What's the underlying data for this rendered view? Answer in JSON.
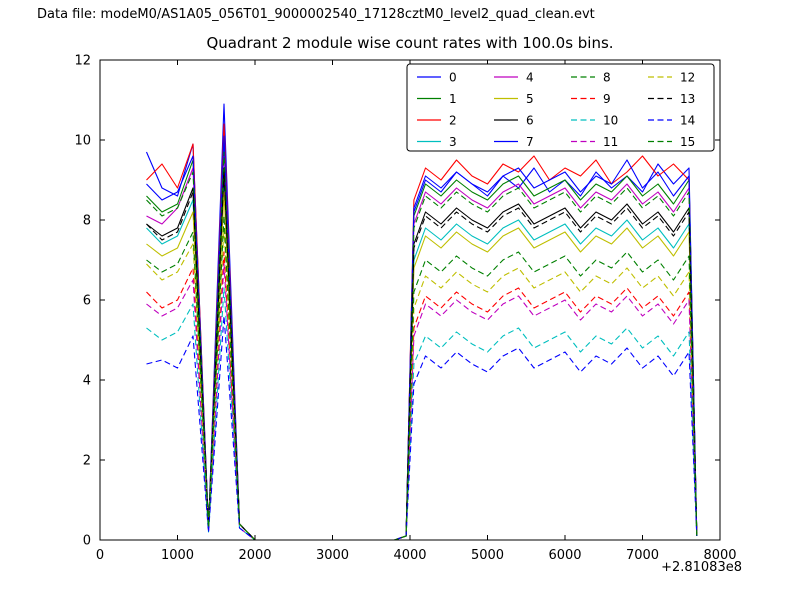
{
  "header": {
    "data_file_label": "Data file: modeM0/AS1A05_056T01_9000002540_17128cztM0_level2_quad_clean.evt"
  },
  "chart_data": {
    "type": "line",
    "title": "Quadrant 2 module wise count rates with 100.0s bins.",
    "xlabel": "",
    "ylabel": "",
    "x_offset_label": "+2.81083e8",
    "xlim": [
      0,
      8000
    ],
    "ylim": [
      0,
      12
    ],
    "xticks": [
      0,
      1000,
      2000,
      3000,
      4000,
      5000,
      6000,
      7000,
      8000
    ],
    "yticks": [
      0,
      2,
      4,
      6,
      8,
      10,
      12
    ],
    "grid": false,
    "legend": {
      "position": "upper center-right",
      "columns": 4,
      "rows": 4
    },
    "x": [
      600,
      800,
      1000,
      1200,
      1400,
      1600,
      1800,
      2000,
      2200,
      2400,
      2600,
      2800,
      3000,
      3200,
      3400,
      3600,
      3800,
      3950,
      4050,
      4200,
      4400,
      4600,
      4800,
      5000,
      5200,
      5400,
      5600,
      5800,
      6000,
      6200,
      6400,
      6600,
      6800,
      7000,
      7200,
      7400,
      7600,
      7700
    ],
    "series": [
      {
        "name": "0",
        "color": "#0000ff",
        "style": "solid",
        "values": [
          9.7,
          8.8,
          8.6,
          9.9,
          0.3,
          10.9,
          0.4,
          0,
          0,
          0,
          0,
          0,
          0,
          0,
          0,
          0,
          0,
          0.1,
          8.2,
          9.0,
          8.7,
          9.2,
          8.9,
          8.6,
          9.1,
          8.8,
          9.3,
          8.7,
          9.0,
          8.6,
          9.2,
          8.8,
          9.1,
          8.7,
          9.4,
          8.9,
          9.3,
          0.1
        ]
      },
      {
        "name": "1",
        "color": "#008000",
        "style": "solid",
        "values": [
          8.6,
          8.2,
          8.4,
          9.5,
          0.3,
          9.9,
          0.4,
          0,
          0,
          0,
          0,
          0,
          0,
          0,
          0,
          0,
          0,
          0.1,
          8.1,
          8.9,
          8.6,
          9.0,
          8.7,
          8.5,
          8.9,
          9.1,
          8.6,
          8.8,
          9.0,
          8.5,
          8.9,
          8.7,
          9.1,
          8.6,
          8.9,
          8.4,
          9.0,
          0.1
        ]
      },
      {
        "name": "2",
        "color": "#ff0000",
        "style": "solid",
        "values": [
          9.0,
          9.4,
          8.8,
          9.9,
          0.3,
          10.4,
          0.4,
          0,
          0,
          0,
          0,
          0,
          0,
          0,
          0,
          0,
          0,
          0.1,
          8.5,
          9.3,
          9.0,
          9.5,
          9.1,
          8.9,
          9.4,
          9.2,
          9.6,
          9.0,
          9.3,
          9.1,
          9.5,
          8.9,
          9.2,
          9.6,
          9.1,
          9.4,
          9.0,
          0.1
        ]
      },
      {
        "name": "3",
        "color": "#00bfbf",
        "style": "solid",
        "values": [
          7.8,
          7.4,
          7.6,
          8.5,
          0.3,
          8.9,
          0.4,
          0,
          0,
          0,
          0,
          0,
          0,
          0,
          0,
          0,
          0,
          0.1,
          7.0,
          7.8,
          7.5,
          7.9,
          7.6,
          7.4,
          7.8,
          8.0,
          7.5,
          7.7,
          7.9,
          7.4,
          7.8,
          7.6,
          8.0,
          7.5,
          7.8,
          7.3,
          7.9,
          0.1
        ]
      },
      {
        "name": "4",
        "color": "#bf00bf",
        "style": "solid",
        "values": [
          8.1,
          7.9,
          8.3,
          9.3,
          0.3,
          9.8,
          0.4,
          0,
          0,
          0,
          0,
          0,
          0,
          0,
          0,
          0,
          0,
          0.1,
          7.9,
          8.7,
          8.4,
          8.8,
          8.5,
          8.3,
          8.7,
          8.9,
          8.4,
          8.6,
          8.8,
          8.3,
          8.7,
          8.5,
          8.9,
          8.4,
          8.7,
          8.2,
          8.8,
          0.1
        ]
      },
      {
        "name": "5",
        "color": "#bfbf00",
        "style": "solid",
        "values": [
          7.4,
          7.1,
          7.3,
          8.2,
          0.3,
          8.7,
          0.4,
          0,
          0,
          0,
          0,
          0,
          0,
          0,
          0,
          0,
          0,
          0.1,
          6.8,
          7.6,
          7.3,
          7.7,
          7.4,
          7.2,
          7.6,
          7.8,
          7.3,
          7.5,
          7.7,
          7.2,
          7.6,
          7.4,
          7.8,
          7.3,
          7.6,
          7.1,
          7.7,
          0.1
        ]
      },
      {
        "name": "6",
        "color": "#000000",
        "style": "solid",
        "values": [
          7.9,
          7.6,
          7.8,
          8.8,
          0.3,
          9.3,
          0.4,
          0,
          0,
          0,
          0,
          0,
          0,
          0,
          0,
          0,
          0,
          0.1,
          7.4,
          8.2,
          7.9,
          8.3,
          8.0,
          7.8,
          8.2,
          8.4,
          7.9,
          8.1,
          8.3,
          7.8,
          8.2,
          8.0,
          8.4,
          7.9,
          8.2,
          7.7,
          8.3,
          0.1
        ]
      },
      {
        "name": "7",
        "color": "#0000ff",
        "style": "solid",
        "values": [
          8.9,
          8.5,
          8.7,
          9.6,
          0.3,
          10.1,
          0.4,
          0,
          0,
          0,
          0,
          0,
          0,
          0,
          0,
          0,
          0,
          0.1,
          8.3,
          9.1,
          8.8,
          9.2,
          8.9,
          8.7,
          9.1,
          9.3,
          8.8,
          9.0,
          9.2,
          8.7,
          9.1,
          8.9,
          9.5,
          8.8,
          9.2,
          8.6,
          9.1,
          0.1
        ]
      },
      {
        "name": "8",
        "color": "#008000",
        "style": "dashed",
        "values": [
          8.5,
          8.1,
          8.3,
          9.2,
          0.3,
          9.7,
          0.4,
          0,
          0,
          0,
          0,
          0,
          0,
          0,
          0,
          0,
          0,
          0.1,
          7.8,
          8.6,
          8.3,
          8.7,
          8.4,
          8.2,
          8.6,
          8.8,
          8.3,
          8.5,
          8.7,
          8.2,
          8.6,
          8.4,
          8.8,
          8.3,
          8.6,
          8.1,
          8.7,
          0.1
        ]
      },
      {
        "name": "9",
        "color": "#ff0000",
        "style": "dashed",
        "values": [
          6.2,
          5.8,
          6.0,
          6.8,
          0.3,
          7.2,
          0.4,
          0,
          0,
          0,
          0,
          0,
          0,
          0,
          0,
          0,
          0,
          0.1,
          5.3,
          6.1,
          5.8,
          6.2,
          5.9,
          5.7,
          6.1,
          6.3,
          5.8,
          6.0,
          6.2,
          5.7,
          6.1,
          5.9,
          6.3,
          5.8,
          6.1,
          5.6,
          6.2,
          0.1
        ]
      },
      {
        "name": "10",
        "color": "#00bfbf",
        "style": "dashed",
        "values": [
          5.3,
          5.0,
          5.2,
          5.9,
          0.2,
          6.3,
          0.3,
          0,
          0,
          0,
          0,
          0,
          0,
          0,
          0,
          0,
          0,
          0.1,
          4.4,
          5.1,
          4.8,
          5.2,
          4.9,
          4.7,
          5.1,
          5.3,
          4.8,
          5.0,
          5.2,
          4.7,
          5.1,
          4.9,
          5.3,
          4.8,
          5.1,
          4.6,
          5.2,
          0.1
        ]
      },
      {
        "name": "11",
        "color": "#bf00bf",
        "style": "dashed",
        "values": [
          5.9,
          5.6,
          5.8,
          6.5,
          0.2,
          6.9,
          0.3,
          0,
          0,
          0,
          0,
          0,
          0,
          0,
          0,
          0,
          0,
          0.1,
          5.1,
          5.9,
          5.6,
          6.0,
          5.7,
          5.5,
          5.9,
          6.1,
          5.6,
          5.8,
          6.0,
          5.5,
          5.9,
          5.7,
          6.1,
          5.6,
          5.9,
          5.4,
          6.0,
          0.1
        ]
      },
      {
        "name": "12",
        "color": "#bfbf00",
        "style": "dashed",
        "values": [
          6.9,
          6.5,
          6.7,
          7.4,
          0.3,
          7.8,
          0.4,
          0,
          0,
          0,
          0,
          0,
          0,
          0,
          0,
          0,
          0,
          0.1,
          5.8,
          6.6,
          6.3,
          6.7,
          6.4,
          6.2,
          6.6,
          6.8,
          6.3,
          6.5,
          6.7,
          6.2,
          6.6,
          6.4,
          6.8,
          6.3,
          6.6,
          6.1,
          6.7,
          0.1
        ]
      },
      {
        "name": "13",
        "color": "#000000",
        "style": "dashed",
        "values": [
          7.9,
          7.5,
          7.7,
          8.7,
          0.3,
          9.2,
          0.4,
          0,
          0,
          0,
          0,
          0,
          0,
          0,
          0,
          0,
          0,
          0.1,
          7.3,
          8.1,
          7.8,
          8.2,
          7.9,
          7.7,
          8.1,
          8.3,
          7.8,
          8.0,
          8.2,
          7.7,
          8.1,
          7.9,
          8.3,
          7.8,
          8.1,
          7.6,
          8.2,
          0.1
        ]
      },
      {
        "name": "14",
        "color": "#0000ff",
        "style": "dashed",
        "values": [
          4.4,
          4.5,
          4.3,
          5.1,
          0.2,
          5.6,
          0.3,
          0,
          0,
          0,
          0,
          0,
          0,
          0,
          0,
          0,
          0,
          0.1,
          3.9,
          4.6,
          4.3,
          4.7,
          4.4,
          4.2,
          4.6,
          4.8,
          4.3,
          4.5,
          4.7,
          4.2,
          4.6,
          4.4,
          4.8,
          4.3,
          4.6,
          4.1,
          4.7,
          0.1
        ]
      },
      {
        "name": "15",
        "color": "#008000",
        "style": "dashed",
        "values": [
          7.0,
          6.7,
          6.9,
          7.7,
          0.3,
          8.1,
          0.4,
          0,
          0,
          0,
          0,
          0,
          0,
          0,
          0,
          0,
          0,
          0.1,
          6.2,
          7.0,
          6.7,
          7.1,
          6.8,
          6.6,
          7.0,
          7.2,
          6.7,
          6.9,
          7.1,
          6.6,
          7.0,
          6.8,
          7.2,
          6.7,
          7.0,
          6.5,
          7.1,
          0.1
        ]
      }
    ]
  }
}
